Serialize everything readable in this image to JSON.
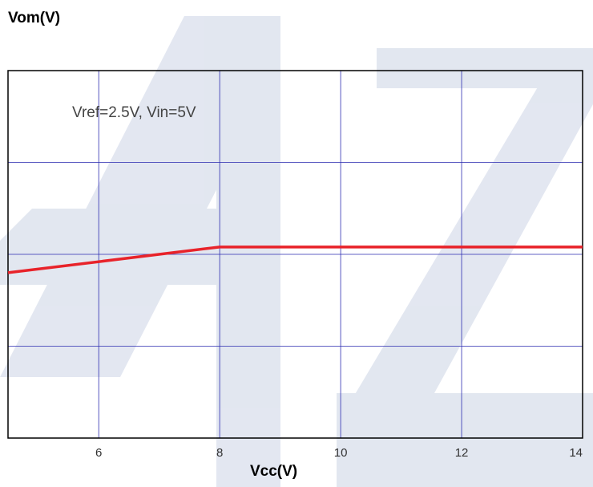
{
  "chart_data": {
    "type": "line",
    "ylabel": "Vom(V)",
    "xlabel": "Vcc(V)",
    "annotation": "Vref=2.5V, Vin=5V",
    "xlim": [
      4.5,
      14
    ],
    "x_ticks": [
      6,
      8,
      10,
      12,
      14
    ],
    "grid": true,
    "series": [
      {
        "color": "#e8232a",
        "x": [
          4.5,
          8,
          9,
          14
        ],
        "y": [
          0.45,
          0.52,
          0.52,
          0.52
        ]
      }
    ],
    "ylim": [
      0,
      1
    ]
  },
  "colors": {
    "grid": "#2b2bb0",
    "frame": "#000000",
    "line": "#e8232a",
    "watermark": "#d4dbe9"
  }
}
